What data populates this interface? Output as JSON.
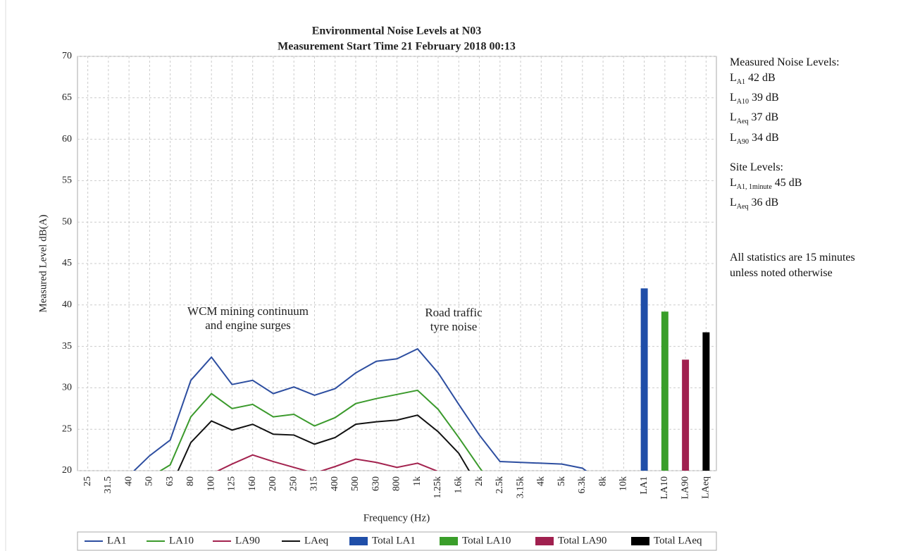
{
  "chart_data": {
    "type": "combo",
    "title": [
      "Environmental Noise Levels at N03",
      "Measurement Start Time 21 February 2018 00:13"
    ],
    "y_label": "Measured Level dB(A)",
    "x_label": "Frequency (Hz)",
    "categories": [
      "25",
      "31.5",
      "40",
      "50",
      "63",
      "80",
      "100",
      "125",
      "160",
      "200",
      "250",
      "315",
      "400",
      "500",
      "630",
      "800",
      "1k",
      "1.25k",
      "1.6k",
      "2k",
      "2.5k",
      "3.15k",
      "4k",
      "5k",
      "6.3k",
      "8k",
      "10k",
      "LA1",
      "LA10",
      "LA90",
      "LAeq"
    ],
    "ylim": [
      20,
      70
    ],
    "yticks": [
      20,
      25,
      30,
      35,
      40,
      45,
      50,
      55,
      60,
      65,
      70
    ],
    "grid": true,
    "series": [
      {
        "name": "LA1",
        "type": "line",
        "color": "#2d4ea0",
        "values": [
          null,
          null,
          19.4,
          21.8,
          23.7,
          30.9,
          33.7,
          30.4,
          30.9,
          29.3,
          30.1,
          29.1,
          29.9,
          31.8,
          33.2,
          33.5,
          34.7,
          31.8,
          28.0,
          24.3,
          21.1,
          21.0,
          20.9,
          20.8,
          20.3,
          18.5,
          null,
          null,
          null,
          null,
          null
        ]
      },
      {
        "name": "LA10",
        "type": "line",
        "color": "#3b9a2c",
        "values": [
          null,
          null,
          null,
          19.2,
          20.7,
          26.5,
          29.3,
          27.5,
          28.0,
          26.5,
          26.8,
          25.4,
          26.4,
          28.1,
          28.7,
          29.2,
          29.7,
          27.4,
          24.0,
          20.4,
          17.0,
          null,
          null,
          null,
          null,
          null,
          null,
          null,
          null,
          null,
          null
        ]
      },
      {
        "name": "LA90",
        "type": "line",
        "color": "#a3234f",
        "values": [
          null,
          null,
          null,
          null,
          null,
          null,
          19.6,
          20.8,
          21.9,
          21.1,
          20.4,
          19.7,
          20.5,
          21.4,
          21.0,
          20.4,
          20.9,
          19.9,
          null,
          null,
          null,
          null,
          null,
          null,
          null,
          null,
          null,
          null,
          null,
          null,
          null
        ]
      },
      {
        "name": "LAeq",
        "type": "line",
        "color": "#111111",
        "values": [
          null,
          null,
          null,
          null,
          17.9,
          23.4,
          26.0,
          24.9,
          25.6,
          24.4,
          24.3,
          23.2,
          24.0,
          25.6,
          25.9,
          26.1,
          26.7,
          24.7,
          22.1,
          17.9,
          null,
          null,
          null,
          null,
          null,
          null,
          null,
          null,
          null,
          null,
          null
        ]
      },
      {
        "name": "Total LA1",
        "type": "bar",
        "color": "#1f4ea8",
        "values": [
          null,
          null,
          null,
          null,
          null,
          null,
          null,
          null,
          null,
          null,
          null,
          null,
          null,
          null,
          null,
          null,
          null,
          null,
          null,
          null,
          null,
          null,
          null,
          null,
          null,
          null,
          null,
          42.0,
          null,
          null,
          null
        ]
      },
      {
        "name": "Total LA10",
        "type": "bar",
        "color": "#3a9e2a",
        "values": [
          null,
          null,
          null,
          null,
          null,
          null,
          null,
          null,
          null,
          null,
          null,
          null,
          null,
          null,
          null,
          null,
          null,
          null,
          null,
          null,
          null,
          null,
          null,
          null,
          null,
          null,
          null,
          null,
          39.2,
          null,
          null
        ]
      },
      {
        "name": "Total LA90",
        "type": "bar",
        "color": "#a0204f",
        "values": [
          null,
          null,
          null,
          null,
          null,
          null,
          null,
          null,
          null,
          null,
          null,
          null,
          null,
          null,
          null,
          null,
          null,
          null,
          null,
          null,
          null,
          null,
          null,
          null,
          null,
          null,
          null,
          null,
          null,
          33.4,
          null
        ]
      },
      {
        "name": "Total LAeq",
        "type": "bar",
        "color": "#000000",
        "values": [
          null,
          null,
          null,
          null,
          null,
          null,
          null,
          null,
          null,
          null,
          null,
          null,
          null,
          null,
          null,
          null,
          null,
          null,
          null,
          null,
          null,
          null,
          null,
          null,
          null,
          null,
          null,
          null,
          null,
          null,
          36.7
        ]
      }
    ],
    "annotations": [
      {
        "lines": [
          "WCM mining continuum",
          "and engine surges"
        ]
      },
      {
        "lines": [
          "Road traffic",
          "tyre noise"
        ]
      }
    ],
    "side_text": [
      {
        "heading": "Measured Noise Levels:",
        "items": [
          {
            "symbol": "L",
            "sub": "A1",
            "value": "42 dB"
          },
          {
            "symbol": "L",
            "sub": "A10",
            "value": "39 dB"
          },
          {
            "symbol": "L",
            "sub": "Aeq",
            "value": "37 dB"
          },
          {
            "symbol": "L",
            "sub": "A90",
            "value": "34 dB"
          }
        ]
      },
      {
        "heading": "Site Levels:",
        "items": [
          {
            "symbol": "L",
            "sub": "A1, 1minute",
            "value": "45 dB"
          },
          {
            "symbol": "L",
            "sub": "Aeq",
            "value": "36 dB"
          }
        ]
      },
      {
        "heading": "All statistics are 15 minutes",
        "items": [],
        "note": "unless noted otherwise"
      }
    ]
  }
}
